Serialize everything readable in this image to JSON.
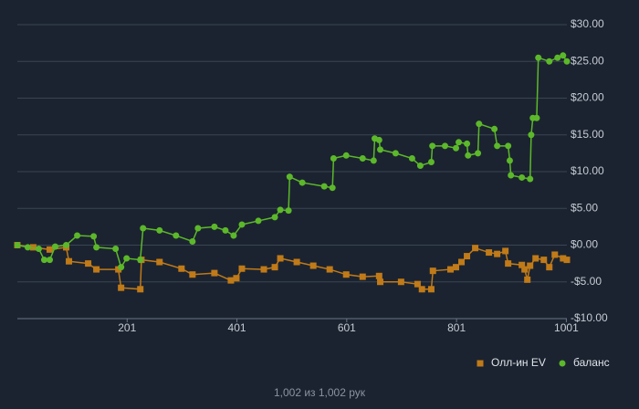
{
  "chart_data": {
    "type": "line",
    "footer": "1,002 из 1,002 рук",
    "xlim": [
      1,
      1002
    ],
    "xticks": [
      201,
      401,
      601,
      801,
      1001
    ],
    "ylim": [
      -10,
      30
    ],
    "yticks": [
      {
        "value": -10,
        "label": "-$10.00"
      },
      {
        "value": -5,
        "label": "-$5.00"
      },
      {
        "value": 0,
        "label": "$0.00"
      },
      {
        "value": 5,
        "label": "$5.00"
      },
      {
        "value": 10,
        "label": "$10.00"
      },
      {
        "value": 15,
        "label": "$15.00"
      },
      {
        "value": 20,
        "label": "$20.00"
      },
      {
        "value": 25,
        "label": "$25.00"
      },
      {
        "value": 30,
        "label": "$30.00"
      }
    ],
    "grid": true,
    "legend": "bottom-right",
    "series": [
      {
        "name": "Олл-ин EV",
        "color": "#c07a18",
        "marker": "square",
        "x": [
          1,
          30,
          60,
          90,
          95,
          130,
          145,
          185,
          190,
          225,
          227,
          260,
          300,
          320,
          360,
          390,
          400,
          410,
          450,
          470,
          480,
          510,
          540,
          570,
          600,
          630,
          660,
          662,
          700,
          730,
          738,
          755,
          758,
          790,
          800,
          810,
          820,
          835,
          860,
          875,
          890,
          895,
          920,
          925,
          930,
          935,
          945,
          960,
          970,
          980,
          995,
          1002
        ],
        "values": [
          0,
          -0.3,
          -0.6,
          -0.3,
          -2.2,
          -2.5,
          -3.3,
          -3.3,
          -5.8,
          -6,
          -2,
          -2.3,
          -3.2,
          -4,
          -3.8,
          -4.8,
          -4.5,
          -3.2,
          -3.3,
          -3,
          -1.8,
          -2.3,
          -2.8,
          -3.3,
          -4,
          -4.3,
          -4.2,
          -5,
          -5,
          -5.3,
          -6,
          -6,
          -3.5,
          -3.3,
          -3,
          -2.3,
          -1.5,
          -0.4,
          -1,
          -1.2,
          -0.8,
          -2.5,
          -2.7,
          -3.3,
          -4.7,
          -2.8,
          -1.8,
          -2,
          -3,
          -1.3,
          -1.8,
          -2
        ]
      },
      {
        "name": "баланс",
        "color": "#5cb82a",
        "marker": "circle",
        "x": [
          1,
          20,
          40,
          50,
          60,
          70,
          90,
          110,
          140,
          145,
          180,
          190,
          200,
          225,
          230,
          260,
          290,
          320,
          330,
          360,
          380,
          395,
          410,
          440,
          470,
          480,
          495,
          497,
          520,
          560,
          575,
          577,
          600,
          630,
          650,
          652,
          660,
          662,
          690,
          720,
          735,
          755,
          757,
          780,
          800,
          805,
          820,
          822,
          840,
          842,
          870,
          875,
          895,
          898,
          900,
          920,
          935,
          937,
          940,
          947,
          950,
          970,
          985,
          995,
          1002
        ],
        "values": [
          0,
          -0.3,
          -0.5,
          -2,
          -2,
          -0.2,
          0,
          1.3,
          1.2,
          -0.3,
          -0.5,
          -3,
          -1.8,
          -2,
          2.3,
          2,
          1.3,
          0.5,
          2.3,
          2.5,
          2,
          1.3,
          2.8,
          3.3,
          3.8,
          4.8,
          4.7,
          9.3,
          8.5,
          8,
          7.8,
          11.8,
          12.2,
          11.8,
          11.5,
          14.5,
          14.3,
          13,
          12.5,
          11.8,
          10.8,
          11.3,
          13.5,
          13.5,
          13.2,
          14,
          13.8,
          12.2,
          12.5,
          16.5,
          15.8,
          13.5,
          13.5,
          11.5,
          9.5,
          9.2,
          9,
          15,
          17.3,
          17.3,
          25.5,
          25,
          25.5,
          25.8,
          25
        ]
      }
    ]
  }
}
